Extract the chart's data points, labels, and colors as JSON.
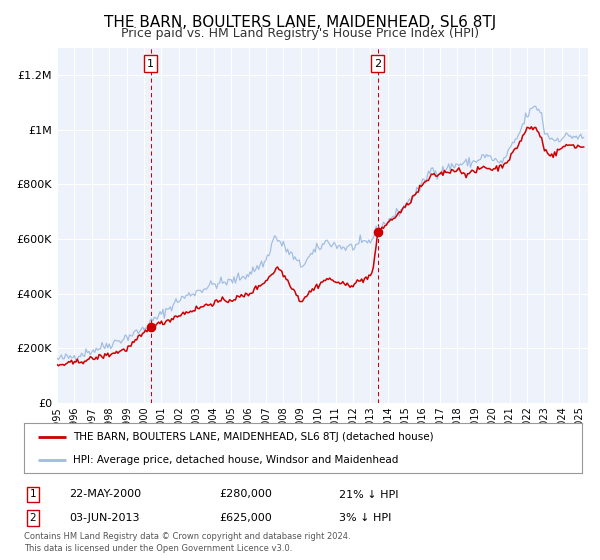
{
  "title": "THE BARN, BOULTERS LANE, MAIDENHEAD, SL6 8TJ",
  "subtitle": "Price paid vs. HM Land Registry's House Price Index (HPI)",
  "title_fontsize": 11,
  "subtitle_fontsize": 9,
  "background_color": "#ffffff",
  "plot_bg_color": "#eef2fb",
  "grid_color": "#ffffff",
  "ylabel_ticks": [
    "£0",
    "£200K",
    "£400K",
    "£600K",
    "£800K",
    "£1M",
    "£1.2M"
  ],
  "ytick_values": [
    0,
    200000,
    400000,
    600000,
    800000,
    1000000,
    1200000
  ],
  "ylim": [
    0,
    1300000
  ],
  "xlim_start": 1995.0,
  "xlim_end": 2025.5,
  "sale1_x": 2000.38,
  "sale1_y": 280000,
  "sale1_label": "1",
  "sale2_x": 2013.42,
  "sale2_y": 625000,
  "sale2_label": "2",
  "vline1_x": 2000.38,
  "vline2_x": 2013.42,
  "red_line_color": "#cc0000",
  "blue_line_color": "#a0bce0",
  "dot_color": "#cc0000",
  "vline_color": "#cc0000",
  "legend_label_red": "THE BARN, BOULTERS LANE, MAIDENHEAD, SL6 8TJ (detached house)",
  "legend_label_blue": "HPI: Average price, detached house, Windsor and Maidenhead",
  "annotation1_date": "22-MAY-2000",
  "annotation1_price": "£280,000",
  "annotation1_hpi": "21% ↓ HPI",
  "annotation2_date": "03-JUN-2013",
  "annotation2_price": "£625,000",
  "annotation2_hpi": "3% ↓ HPI",
  "footer_text": "Contains HM Land Registry data © Crown copyright and database right 2024.\nThis data is licensed under the Open Government Licence v3.0.",
  "marker_box_color": "#cc0000"
}
